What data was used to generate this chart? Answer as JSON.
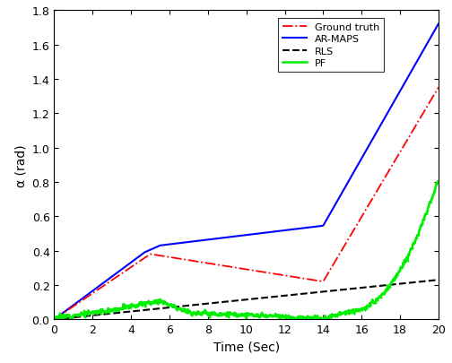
{
  "title": "",
  "xlabel": "Time (Sec)",
  "ylabel": "α (rad)",
  "xlim": [
    0,
    20
  ],
  "ylim": [
    0,
    1.8
  ],
  "xticks": [
    0,
    2,
    4,
    6,
    8,
    10,
    12,
    14,
    16,
    18,
    20
  ],
  "yticks": [
    0.0,
    0.2,
    0.4,
    0.6,
    0.8,
    1.0,
    1.2,
    1.4,
    1.6,
    1.8
  ],
  "ground_truth": {
    "color": "#ff0000",
    "linestyle": "-.",
    "linewidth": 1.3,
    "label": "Ground truth"
  },
  "ar_maps": {
    "color": "#0000ff",
    "linestyle": "-",
    "linewidth": 1.5,
    "label": "AR-MAPS"
  },
  "rls": {
    "color": "#000000",
    "linestyle": "--",
    "linewidth": 1.5,
    "label": "RLS"
  },
  "pf": {
    "label": "PF",
    "color": "#00ee00",
    "linewidth": 1.8,
    "marker": ".",
    "markersize": 3.0
  },
  "legend_fontsize": 8,
  "axis_fontsize": 10,
  "tick_fontsize": 9
}
